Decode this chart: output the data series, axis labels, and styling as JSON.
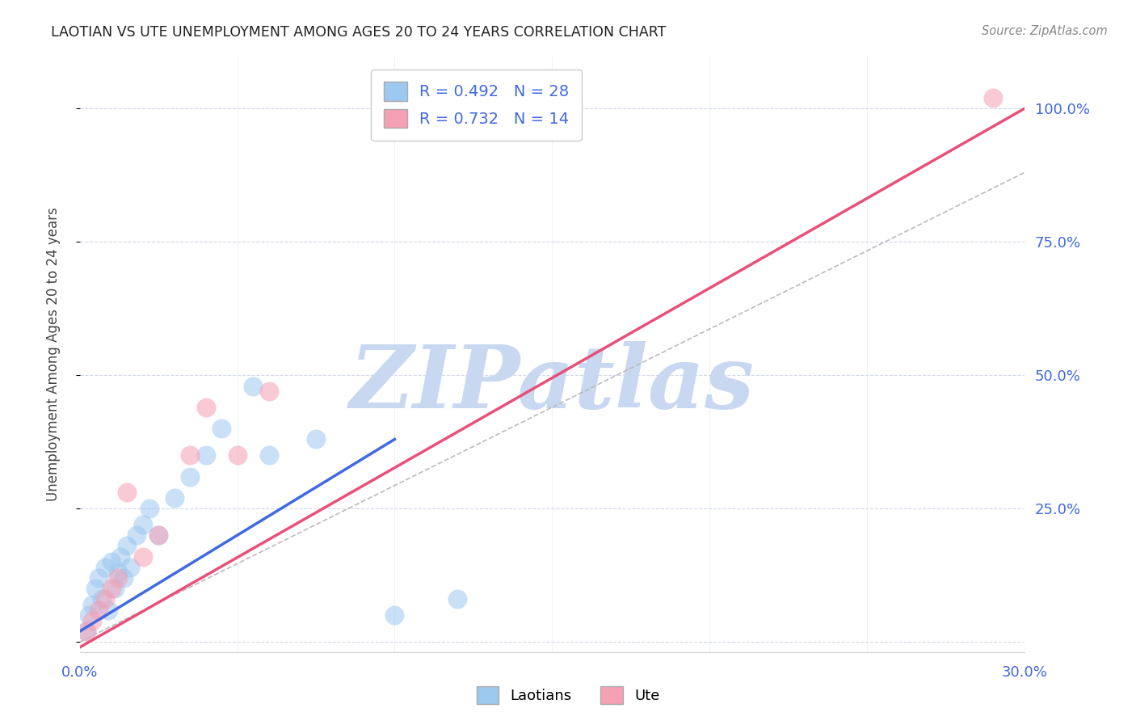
{
  "title": "LAOTIAN VS UTE UNEMPLOYMENT AMONG AGES 20 TO 24 YEARS CORRELATION CHART",
  "source": "Source: ZipAtlas.com",
  "ylabel": "Unemployment Among Ages 20 to 24 years",
  "xlim": [
    0.0,
    0.3
  ],
  "ylim": [
    -0.02,
    1.1
  ],
  "xticks": [
    0.0,
    0.05,
    0.1,
    0.15,
    0.2,
    0.25,
    0.3
  ],
  "xtick_labels": [
    "0.0%",
    "",
    "",
    "",
    "",
    "",
    "30.0%"
  ],
  "yticks": [
    0.0,
    0.25,
    0.5,
    0.75,
    1.0
  ],
  "ytick_labels": [
    "",
    "25.0%",
    "50.0%",
    "75.0%",
    "100.0%"
  ],
  "R_laotian": 0.492,
  "N_laotian": 28,
  "R_ute": 0.732,
  "N_ute": 14,
  "laotian_color": "#9DC8F0",
  "ute_color": "#F5A0B5",
  "trend_laotian_color": "#4169E1",
  "trend_ute_color": "#E8507A",
  "watermark": "ZIPatlas",
  "watermark_color": "#C8D8F0",
  "laotian_x": [
    0.002,
    0.003,
    0.004,
    0.005,
    0.006,
    0.007,
    0.008,
    0.009,
    0.01,
    0.011,
    0.012,
    0.013,
    0.014,
    0.015,
    0.016,
    0.018,
    0.02,
    0.022,
    0.025,
    0.03,
    0.035,
    0.04,
    0.045,
    0.055,
    0.06,
    0.075,
    0.1,
    0.12
  ],
  "laotian_y": [
    0.02,
    0.05,
    0.07,
    0.1,
    0.12,
    0.08,
    0.14,
    0.06,
    0.15,
    0.1,
    0.13,
    0.16,
    0.12,
    0.18,
    0.14,
    0.2,
    0.22,
    0.25,
    0.2,
    0.27,
    0.31,
    0.35,
    0.4,
    0.48,
    0.35,
    0.38,
    0.05,
    0.08
  ],
  "ute_x": [
    0.002,
    0.004,
    0.006,
    0.008,
    0.01,
    0.012,
    0.015,
    0.02,
    0.025,
    0.035,
    0.04,
    0.05,
    0.06,
    0.29
  ],
  "ute_y": [
    0.02,
    0.04,
    0.06,
    0.08,
    0.1,
    0.12,
    0.28,
    0.16,
    0.2,
    0.35,
    0.44,
    0.35,
    0.47,
    1.02
  ],
  "trend_laotian_x0": 0.0,
  "trend_laotian_y0": 0.02,
  "trend_laotian_x1": 0.1,
  "trend_laotian_y1": 0.38,
  "trend_ute_x0": 0.0,
  "trend_ute_y0": -0.01,
  "trend_ute_x1": 0.3,
  "trend_ute_y1": 1.0,
  "ref_line_x0": 0.0,
  "ref_line_y0": 0.0,
  "ref_line_x1": 0.3,
  "ref_line_y1": 0.88,
  "background_color": "#FFFFFF",
  "grid_color": "#D0D8E8",
  "axis_label_color": "#4169E1",
  "title_color": "#222222"
}
